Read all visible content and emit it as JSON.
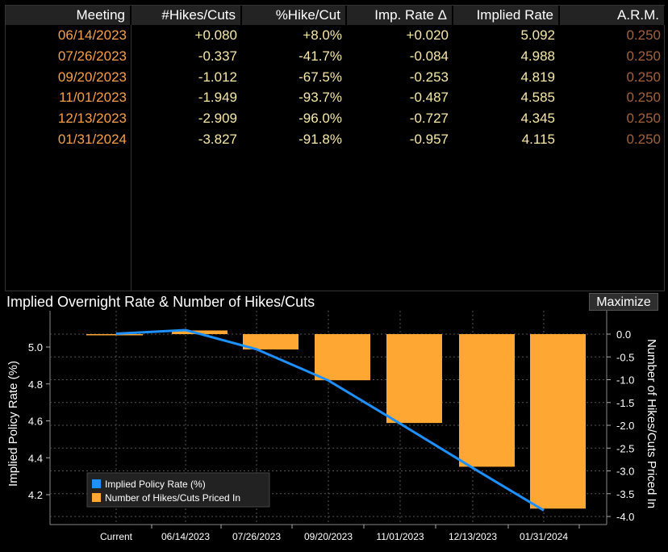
{
  "table": {
    "headers": [
      "Meeting",
      "#Hikes/Cuts",
      "%Hike/Cut",
      "Imp. Rate Δ",
      "Implied Rate",
      "A.R.M."
    ],
    "rows": [
      {
        "meeting": "06/14/2023",
        "hikes": "+0.080",
        "pct": "+8.0%",
        "delta": "+0.020",
        "rate": "5.092",
        "arm": "0.250"
      },
      {
        "meeting": "07/26/2023",
        "hikes": "-0.337",
        "pct": "-41.7%",
        "delta": "-0.084",
        "rate": "4.988",
        "arm": "0.250"
      },
      {
        "meeting": "09/20/2023",
        "hikes": "-1.012",
        "pct": "-67.5%",
        "delta": "-0.253",
        "rate": "4.819",
        "arm": "0.250"
      },
      {
        "meeting": "11/01/2023",
        "hikes": "-1.949",
        "pct": "-93.7%",
        "delta": "-0.487",
        "rate": "4.585",
        "arm": "0.250"
      },
      {
        "meeting": "12/13/2023",
        "hikes": "-2.909",
        "pct": "-96.0%",
        "delta": "-0.727",
        "rate": "4.345",
        "arm": "0.250"
      },
      {
        "meeting": "01/31/2024",
        "hikes": "-3.827",
        "pct": "-91.8%",
        "delta": "-0.957",
        "rate": "4.115",
        "arm": "0.250"
      }
    ]
  },
  "colors": {
    "meeting": "#f5a04a",
    "numbers": "#f7e8a8",
    "arm": "#a0623a",
    "bar": "#ffa733",
    "line": "#1e90ff",
    "grid": "#555555"
  },
  "chart_title": "Implied Overnight Rate & Number of Hikes/Cuts",
  "maximize_label": "Maximize",
  "chart_data": {
    "type": "bar",
    "categories": [
      "Current",
      "06/14/2023",
      "07/26/2023",
      "09/20/2023",
      "11/01/2023",
      "12/13/2023",
      "01/31/2024"
    ],
    "series": [
      {
        "name": "Implied Policy Rate (%)",
        "type": "line",
        "axis": "left",
        "values": [
          5.072,
          5.092,
          4.988,
          4.819,
          4.585,
          4.345,
          4.115
        ]
      },
      {
        "name": "Number of Hikes/Cuts Priced In",
        "type": "bar",
        "axis": "right",
        "values": [
          0,
          0.08,
          -0.337,
          -1.012,
          -1.949,
          -2.909,
          -3.827
        ]
      }
    ],
    "ylabel": "Implied Policy Rate (%)",
    "ylabel_right": "Number of Hikes/Cuts Priced In",
    "ylim": [
      4.1,
      5.15
    ],
    "ylim_right": [
      -4.05,
      0.2
    ],
    "yticks": [
      "4.2",
      "4.4",
      "4.6",
      "4.8",
      "5.0"
    ],
    "yticks_right": [
      "0.0",
      "-0.5",
      "-1.0",
      "-1.5",
      "-2.0",
      "-2.5",
      "-3.0",
      "-3.5",
      "-4.0"
    ],
    "grid": true,
    "legend_position": "bottom-left"
  }
}
